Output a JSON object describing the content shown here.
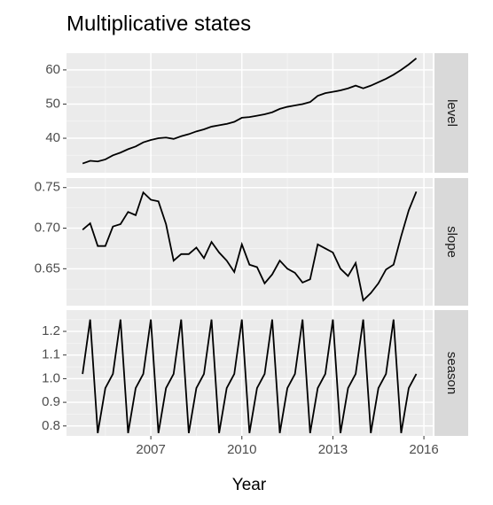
{
  "title": "Multiplicative states",
  "x_label": "Year",
  "chart_data": [
    {
      "type": "line",
      "strip": "level",
      "color": "#000000",
      "x": [
        2004.75,
        2005,
        2005.25,
        2005.5,
        2005.75,
        2006,
        2006.25,
        2006.5,
        2006.75,
        2007,
        2007.25,
        2007.5,
        2007.75,
        2008,
        2008.25,
        2008.5,
        2008.75,
        2009,
        2009.25,
        2009.5,
        2009.75,
        2010,
        2010.25,
        2010.5,
        2010.75,
        2011,
        2011.25,
        2011.5,
        2011.75,
        2012,
        2012.25,
        2012.5,
        2012.75,
        2013,
        2013.25,
        2013.5,
        2013.75,
        2014,
        2014.25,
        2014.5,
        2014.75,
        2015,
        2015.25,
        2015.5,
        2015.75
      ],
      "values": [
        32.6,
        33.4,
        33.2,
        33.8,
        35,
        35.8,
        36.8,
        37.6,
        38.8,
        39.5,
        40,
        40.2,
        39.8,
        40.6,
        41.2,
        42,
        42.6,
        43.4,
        43.8,
        44.2,
        44.8,
        46,
        46.2,
        46.6,
        47,
        47.6,
        48.6,
        49.2,
        49.6,
        50,
        50.6,
        52.4,
        53.2,
        53.6,
        54,
        54.6,
        55.4,
        54.6,
        55.4,
        56.4,
        57.4,
        58.6,
        60,
        61.6,
        63.4
      ],
      "xlim": [
        2004.22,
        2016.29
      ],
      "xticks": [
        2007,
        2010,
        2013,
        2016
      ],
      "ylim": [
        29.9,
        64.9
      ],
      "yticks": [
        40,
        50,
        60
      ]
    },
    {
      "type": "line",
      "strip": "slope",
      "color": "#000000",
      "x": [
        2004.75,
        2005,
        2005.25,
        2005.5,
        2005.75,
        2006,
        2006.25,
        2006.5,
        2006.75,
        2007,
        2007.25,
        2007.5,
        2007.75,
        2008,
        2008.25,
        2008.5,
        2008.75,
        2009,
        2009.25,
        2009.5,
        2009.75,
        2010,
        2010.25,
        2010.5,
        2010.75,
        2011,
        2011.25,
        2011.5,
        2011.75,
        2012,
        2012.25,
        2012.5,
        2012.75,
        2013,
        2013.25,
        2013.5,
        2013.75,
        2014,
        2014.25,
        2014.5,
        2014.75,
        2015,
        2015.25,
        2015.5,
        2015.75
      ],
      "values": [
        0.698,
        0.706,
        0.678,
        0.678,
        0.702,
        0.705,
        0.72,
        0.716,
        0.744,
        0.735,
        0.733,
        0.705,
        0.66,
        0.668,
        0.668,
        0.676,
        0.663,
        0.683,
        0.67,
        0.66,
        0.646,
        0.68,
        0.655,
        0.652,
        0.632,
        0.643,
        0.66,
        0.65,
        0.645,
        0.633,
        0.637,
        0.68,
        0.675,
        0.67,
        0.65,
        0.641,
        0.657,
        0.611,
        0.62,
        0.632,
        0.649,
        0.655,
        0.69,
        0.722,
        0.745
      ],
      "xlim": [
        2004.22,
        2016.29
      ],
      "xticks": [
        2007,
        2010,
        2013,
        2016
      ],
      "ylim": [
        0.6045,
        0.7617
      ],
      "yticks": [
        0.65,
        {
          "value": 0.7,
          "label": "0.70"
        },
        0.75
      ]
    },
    {
      "type": "line",
      "strip": "season",
      "color": "#000000",
      "x": [
        2004.75,
        2005,
        2005.25,
        2005.5,
        2005.75,
        2006,
        2006.25,
        2006.5,
        2006.75,
        2007,
        2007.25,
        2007.5,
        2007.75,
        2008,
        2008.25,
        2008.5,
        2008.75,
        2009,
        2009.25,
        2009.5,
        2009.75,
        2010,
        2010.25,
        2010.5,
        2010.75,
        2011,
        2011.25,
        2011.5,
        2011.75,
        2012,
        2012.25,
        2012.5,
        2012.75,
        2013,
        2013.25,
        2013.5,
        2013.75,
        2014,
        2014.25,
        2014.5,
        2014.75,
        2015,
        2015.25,
        2015.5,
        2015.75
      ],
      "values": [
        1.02,
        1.25,
        0.77,
        0.96,
        1.02,
        1.25,
        0.77,
        0.96,
        1.02,
        1.25,
        0.77,
        0.96,
        1.02,
        1.25,
        0.77,
        0.96,
        1.02,
        1.25,
        0.77,
        0.96,
        1.02,
        1.25,
        0.77,
        0.96,
        1.02,
        1.25,
        0.77,
        0.96,
        1.02,
        1.25,
        0.77,
        0.96,
        1.02,
        1.25,
        0.77,
        0.96,
        1.02,
        1.25,
        0.77,
        0.96,
        1.02,
        1.25,
        0.77,
        0.96,
        1.02
      ],
      "xlim": [
        2004.22,
        2016.29
      ],
      "xticks": [
        2007,
        2010,
        2013,
        2016
      ],
      "ylim": [
        0.758,
        1.29
      ],
      "yticks": [
        {
          "value": 0.8,
          "label": "0.8"
        },
        {
          "value": 0.9,
          "label": "0.9"
        },
        {
          "value": 1.0,
          "label": "1.0"
        },
        {
          "value": 1.1,
          "label": "1.1"
        },
        {
          "value": 1.2,
          "label": "1.2"
        }
      ]
    }
  ]
}
